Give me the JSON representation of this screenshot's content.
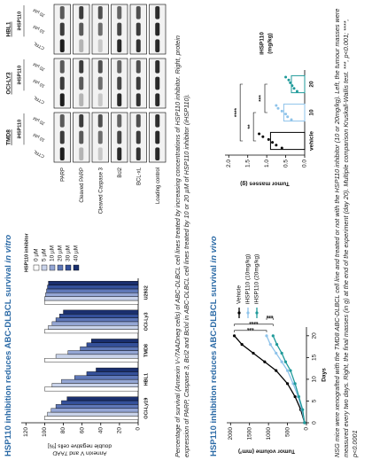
{
  "titles": [
    {
      "text": "HSP110 inhibition reduces ABC-DLBCL survival",
      "italic": "in vitro"
    },
    {
      "text": "HSP110 inhibition reduces ABC-DLBCL survival",
      "italic": "in vivo"
    }
  ],
  "captions": [
    "Percentage of survival (Annexin V-/7AADneg cells) of ABC-DLBCL cell lines treated by increasing concentrations of HSP110 inhibitor. Right, protein expression of PARP, Caspase 3, Bcl2 and Bclxl in ABC-DLBCL cell lines treated by 10 or 20 µM of HSP110 inhibitor (iHSP110).",
    "NSG mice were xenografted with the TMD8 ABC-DLBCL cell line and treated or not with the HSP110 inhibitor (10 or 20mg/kg). Left, the tumour masses were measured every two days. Right, the final masses (in g) at the end of the experiment (day 20). Multiple comparison Kruskall-Wallis test. ***, p<0.001; ****, p<0.0001"
  ],
  "blot": {
    "cell_lines": [
      {
        "name": "TMD8",
        "group": "iHSP110",
        "columns": [
          "CTRL",
          "10 µM",
          "20 µM"
        ]
      },
      {
        "name": "OCI-LY3",
        "group": "iHSP110",
        "columns": [
          "CTRL",
          "10 µM",
          "20 µM"
        ]
      },
      {
        "name": "HBL1",
        "group": "iHSP110",
        "columns": [
          "CTRL",
          "10 µM",
          "20 µM"
        ]
      }
    ],
    "rows": [
      "PARP",
      "Cleaved PARP",
      "Cleaved Caspase 3",
      "Bcl2",
      "BCL-xL",
      "Loading control"
    ]
  },
  "chart_data": [
    {
      "type": "bar",
      "y_label": [
        "Annexin V and 7AAD",
        "double negative cells [%]"
      ],
      "legend_title": "HSP110 inhibitor",
      "categories": [
        "OCI-Ly19",
        "HBL1",
        "TMD8",
        "OCI-Ly3",
        "U2932"
      ],
      "series": [
        {
          "name": "0 µM",
          "color": "#ffffff",
          "values": [
            100,
            100,
            100,
            100,
            100
          ]
        },
        {
          "name": "5 µM",
          "color": "#c9d3ea",
          "values": [
            97,
            92,
            88,
            96,
            100
          ]
        },
        {
          "name": "10 µM",
          "color": "#94a6d4",
          "values": [
            93,
            82,
            75,
            92,
            99
          ]
        },
        {
          "name": "20 µM",
          "color": "#5f78b8",
          "values": [
            88,
            68,
            62,
            88,
            98
          ]
        },
        {
          "name": "30 µM",
          "color": "#34509a",
          "values": [
            82,
            55,
            55,
            84,
            97
          ]
        },
        {
          "name": "40 µM",
          "color": "#1a2f6e",
          "values": [
            76,
            45,
            50,
            80,
            96
          ]
        }
      ],
      "ylim": [
        0,
        125
      ],
      "yticks": [
        0,
        20,
        40,
        60,
        80,
        100,
        120
      ]
    },
    {
      "type": "line",
      "y_label": "Tumor volume (mm³)",
      "x_label": "Days",
      "x": [
        0,
        3,
        6,
        9,
        12,
        14,
        16,
        18,
        20
      ],
      "series": [
        {
          "name": "Vehicle",
          "color": "#000000",
          "values": [
            50,
            150,
            300,
            500,
            800,
            1100,
            1400,
            1700,
            1900
          ]
        },
        {
          "name": "iHSP110 (10mg/kg)",
          "color": "#8ec3ea",
          "values": [
            50,
            120,
            220,
            350,
            500,
            650,
            800,
            950,
            1050
          ]
        },
        {
          "name": "iHSP110 (20mg/kg)",
          "color": "#1f9a9a",
          "values": [
            50,
            100,
            200,
            300,
            420,
            550,
            650,
            780,
            880
          ]
        }
      ],
      "xlim": [
        0,
        22
      ],
      "xticks": [
        0,
        5,
        10,
        15,
        20
      ],
      "ylim": [
        0,
        2100
      ],
      "yticks": [
        0,
        500,
        1000,
        1500,
        2000
      ],
      "annotations": [
        "***",
        "****",
        "***"
      ]
    },
    {
      "type": "scatter_bar",
      "y_label": "Tumor masses (g)",
      "x_label": [
        "iHSP110",
        "(mg/kg)"
      ],
      "categories": [
        "vehicle",
        "10",
        "20"
      ],
      "colors": [
        "#000000",
        "#8ec3ea",
        "#1f9a9a"
      ],
      "values": [
        0.9,
        0.55,
        0.35
      ],
      "points": [
        [
          0.6,
          0.75,
          0.85,
          0.95,
          1.1,
          1.2
        ],
        [
          0.35,
          0.45,
          0.5,
          0.6,
          0.7,
          0.75
        ],
        [
          0.2,
          0.28,
          0.33,
          0.38,
          0.42,
          0.5
        ]
      ],
      "ylim": [
        0,
        2.1
      ],
      "yticks": [
        {
          "value": 0,
          "label": "0.0"
        },
        {
          "value": 0.5,
          "label": "0.5"
        },
        {
          "value": 1,
          "label": "1.0"
        },
        {
          "value": 1.5,
          "label": "1.5"
        },
        {
          "value": 2,
          "label": "2.0"
        }
      ],
      "significance": [
        "**",
        "***",
        "****"
      ]
    }
  ]
}
